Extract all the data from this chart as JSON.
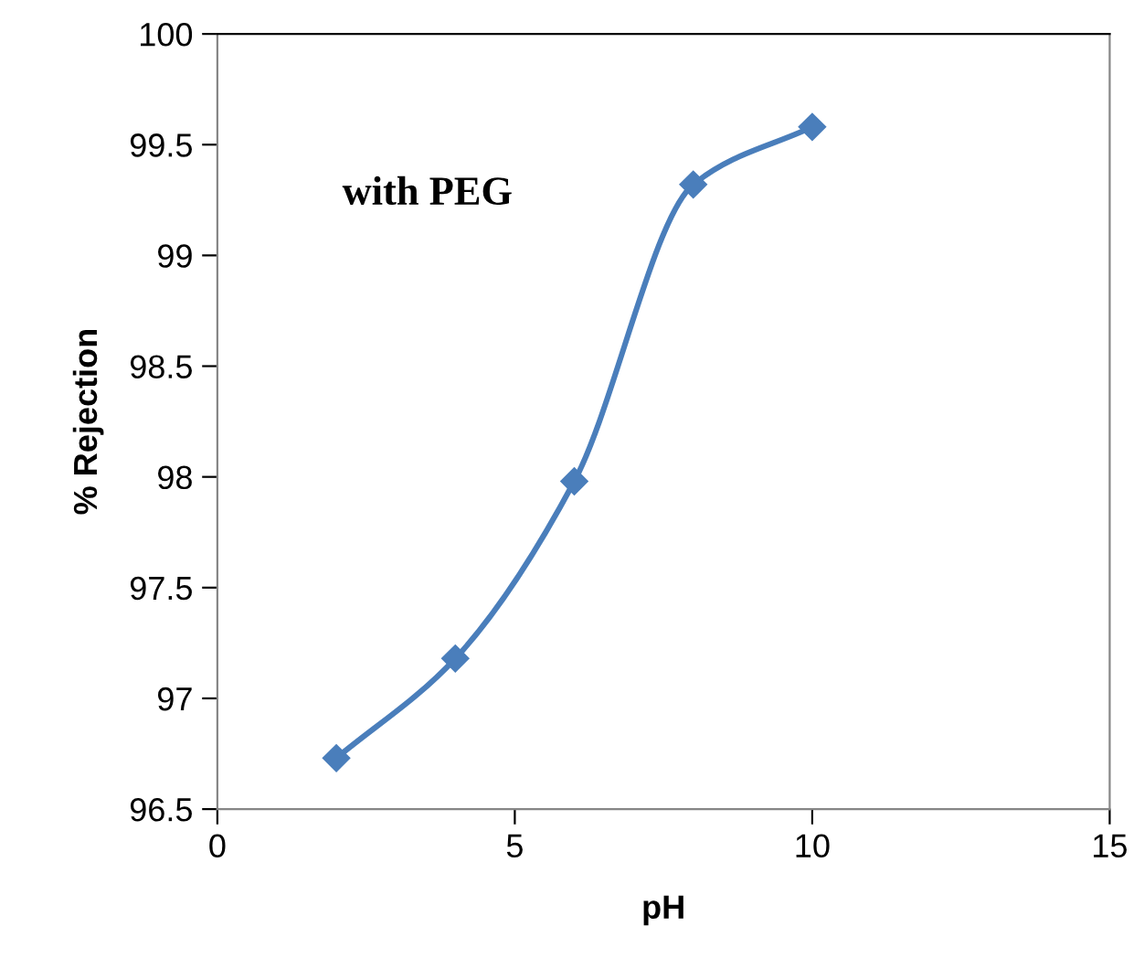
{
  "chart_data": {
    "type": "line",
    "xlabel": "pH",
    "ylabel": "% Rejection",
    "x": [
      2,
      4,
      6,
      8,
      10
    ],
    "series": [
      {
        "color": "#4a7ebb",
        "values": [
          96.73,
          97.18,
          97.98,
          99.32,
          99.58
        ]
      }
    ],
    "xlim": [
      0,
      15
    ],
    "xticks": [
      0,
      5,
      10,
      15
    ],
    "ylim": [
      96.5,
      100
    ],
    "yticks": [
      96.5,
      97,
      97.5,
      98,
      98.5,
      99,
      99.5,
      100
    ],
    "marker": "diamond",
    "line_style": "solid",
    "grid": false,
    "legend": false,
    "annotations": [
      "with PEG"
    ]
  }
}
